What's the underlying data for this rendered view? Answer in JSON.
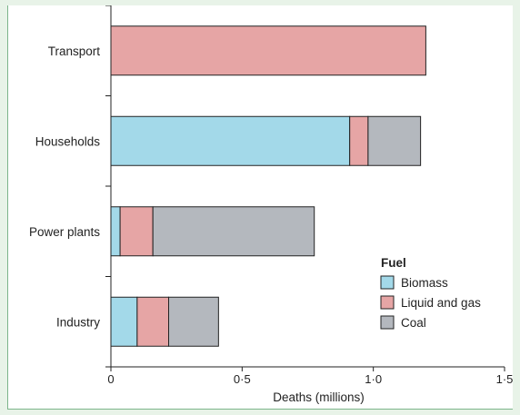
{
  "chart_data": {
    "type": "bar",
    "orientation": "horizontal",
    "stacked": true,
    "categories": [
      "Transport",
      "Households",
      "Power plants",
      "Industry"
    ],
    "series": [
      {
        "name": "Biomass",
        "values": [
          0,
          0.91,
          0.035,
          0.1
        ],
        "color": "#a3d9e9"
      },
      {
        "name": "Liquid and gas",
        "values": [
          1.2,
          0.07,
          0.125,
          0.12
        ],
        "color": "#e6a5a5"
      },
      {
        "name": "Coal",
        "values": [
          0,
          0.2,
          0.615,
          0.19
        ],
        "color": "#b4b8be"
      }
    ],
    "xlabel": "Deaths (millions)",
    "ylabel": "",
    "xlim": [
      0,
      1.5
    ],
    "xticks": [
      "0",
      "0·5",
      "1·0",
      "1·5"
    ],
    "xtick_values": [
      0,
      0.5,
      1.0,
      1.5
    ],
    "grid": false,
    "legend": {
      "title": "Fuel",
      "position": "bottom-right"
    }
  }
}
